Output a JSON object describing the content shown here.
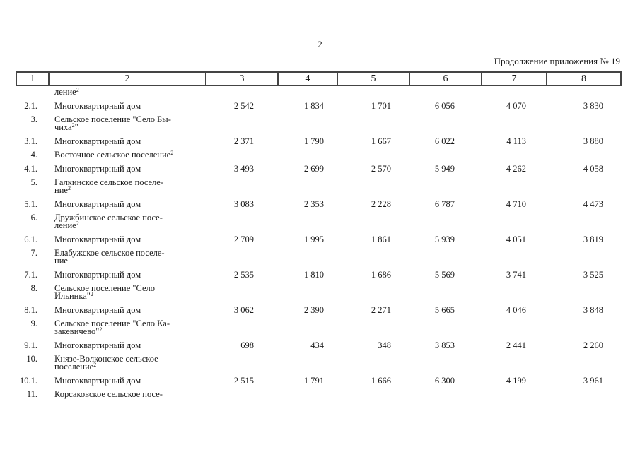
{
  "colors": {
    "ink": "#1c1c1c",
    "border": "#444444"
  },
  "page": {
    "page_number": "2",
    "continuation_label": "Продолжение приложения № 19"
  },
  "table": {
    "header_columns": [
      "1",
      "2",
      "3",
      "4",
      "5",
      "6",
      "7",
      "8"
    ],
    "rows": [
      {
        "cont": true,
        "num": "",
        "lines": [
          [
            {
              "t": "ление"
            },
            {
              "t": "2",
              "s": 1
            }
          ]
        ],
        "values": [
          "",
          "",
          "",
          "",
          "",
          ""
        ]
      },
      {
        "num": "2.1.",
        "lines": [
          [
            {
              "t": "Многоквартирный дом"
            }
          ]
        ],
        "values": [
          "2 542",
          "1 834",
          "1 701",
          "6 056",
          "4 070",
          "3 830"
        ]
      },
      {
        "num": "3.",
        "lines": [
          [
            {
              "t": "Сельское поселение \"Село Бы-"
            }
          ],
          [
            {
              "t": "чиха"
            },
            {
              "t": "2",
              "s": 1
            },
            {
              "t": "\""
            }
          ]
        ],
        "values": [
          "",
          "",
          "",
          "",
          "",
          ""
        ]
      },
      {
        "num": "3.1.",
        "lines": [
          [
            {
              "t": "Многоквартирный дом"
            }
          ]
        ],
        "values": [
          "2 371",
          "1 790",
          "1 667",
          "6 022",
          "4 113",
          "3 880"
        ]
      },
      {
        "num": "4.",
        "lines": [
          [
            {
              "t": "Восточное сельское поселение"
            },
            {
              "t": "2",
              "s": 1
            }
          ]
        ],
        "values": [
          "",
          "",
          "",
          "",
          "",
          ""
        ]
      },
      {
        "num": "4.1.",
        "lines": [
          [
            {
              "t": "Многоквартирный дом"
            }
          ]
        ],
        "values": [
          "3 493",
          "2 699",
          "2 570",
          "5 949",
          "4 262",
          "4 058"
        ]
      },
      {
        "num": "5.",
        "lines": [
          [
            {
              "t": "Галкинское сельское поселе-"
            }
          ],
          [
            {
              "t": "ние"
            },
            {
              "t": "2",
              "s": 1
            }
          ]
        ],
        "values": [
          "",
          "",
          "",
          "",
          "",
          ""
        ]
      },
      {
        "num": "5.1.",
        "lines": [
          [
            {
              "t": "Многоквартирный дом"
            }
          ]
        ],
        "values": [
          "3 083",
          "2 353",
          "2 228",
          "6 787",
          "4 710",
          "4 473"
        ]
      },
      {
        "num": "6.",
        "lines": [
          [
            {
              "t": "Дружбинское сельское посе-"
            }
          ],
          [
            {
              "t": "ление"
            },
            {
              "t": "2",
              "s": 1
            }
          ]
        ],
        "values": [
          "",
          "",
          "",
          "",
          "",
          ""
        ]
      },
      {
        "num": "6.1.",
        "lines": [
          [
            {
              "t": "Многоквартирный дом"
            }
          ]
        ],
        "values": [
          "2 709",
          "1 995",
          "1 861",
          "5 939",
          "4 051",
          "3 819"
        ]
      },
      {
        "num": "7.",
        "lines": [
          [
            {
              "t": "Елабужское сельское поселе-"
            }
          ],
          [
            {
              "t": "ние"
            }
          ]
        ],
        "values": [
          "",
          "",
          "",
          "",
          "",
          ""
        ]
      },
      {
        "num": "7.1.",
        "lines": [
          [
            {
              "t": "Многоквартирный дом"
            }
          ]
        ],
        "values": [
          "2 535",
          "1 810",
          "1 686",
          "5 569",
          "3 741",
          "3 525"
        ]
      },
      {
        "num": "8.",
        "lines": [
          [
            {
              "t": "Сельское поселение \"Село"
            }
          ],
          [
            {
              "t": "Ильинка\""
            },
            {
              "t": "2",
              "s": 1
            }
          ]
        ],
        "values": [
          "",
          "",
          "",
          "",
          "",
          ""
        ]
      },
      {
        "num": "8.1.",
        "lines": [
          [
            {
              "t": "Многоквартирный дом"
            }
          ]
        ],
        "values": [
          "3 062",
          "2 390",
          "2 271",
          "5 665",
          "4 046",
          "3 848"
        ]
      },
      {
        "num": "9.",
        "lines": [
          [
            {
              "t": "Сельское поселение \"Село Ка-"
            }
          ],
          [
            {
              "t": "закевичево\""
            },
            {
              "t": "2",
              "s": 1
            }
          ]
        ],
        "values": [
          "",
          "",
          "",
          "",
          "",
          ""
        ]
      },
      {
        "num": "9.1.",
        "lines": [
          [
            {
              "t": "Многоквартирный дом"
            }
          ]
        ],
        "values": [
          "698",
          "434",
          "348",
          "3 853",
          "2 441",
          "2 260"
        ]
      },
      {
        "num": "10.",
        "lines": [
          [
            {
              "t": "Князе-Волконское сельское"
            }
          ],
          [
            {
              "t": "поселение"
            },
            {
              "t": "2",
              "s": 1
            }
          ]
        ],
        "values": [
          "",
          "",
          "",
          "",
          "",
          ""
        ]
      },
      {
        "num": "10.1.",
        "lines": [
          [
            {
              "t": "Многоквартирный дом"
            }
          ]
        ],
        "values": [
          "2 515",
          "1 791",
          "1 666",
          "6 300",
          "4 199",
          "3 961"
        ]
      },
      {
        "num": "11.",
        "lines": [
          [
            {
              "t": "Корсаковское сельское посе-"
            }
          ]
        ],
        "values": [
          "",
          "",
          "",
          "",
          "",
          ""
        ]
      }
    ]
  }
}
